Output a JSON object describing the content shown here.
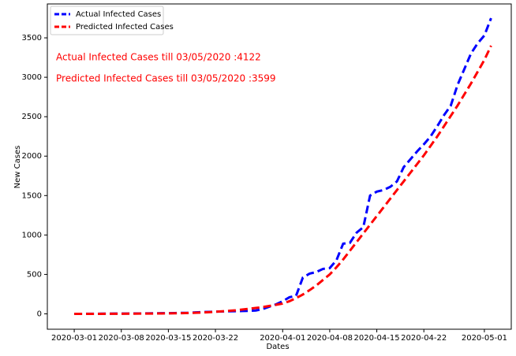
{
  "chart_data": {
    "type": "line",
    "xlabel": "Dates",
    "ylabel": "New Cases",
    "x": [
      "2020-03-01",
      "2020-03-02",
      "2020-03-03",
      "2020-03-04",
      "2020-03-05",
      "2020-03-06",
      "2020-03-07",
      "2020-03-08",
      "2020-03-09",
      "2020-03-10",
      "2020-03-11",
      "2020-03-12",
      "2020-03-13",
      "2020-03-14",
      "2020-03-15",
      "2020-03-16",
      "2020-03-17",
      "2020-03-18",
      "2020-03-19",
      "2020-03-20",
      "2020-03-21",
      "2020-03-22",
      "2020-03-23",
      "2020-03-24",
      "2020-03-25",
      "2020-03-26",
      "2020-03-27",
      "2020-03-28",
      "2020-03-29",
      "2020-03-30",
      "2020-03-31",
      "2020-04-01",
      "2020-04-02",
      "2020-04-03",
      "2020-04-04",
      "2020-04-05",
      "2020-04-06",
      "2020-04-07",
      "2020-04-08",
      "2020-04-09",
      "2020-04-10",
      "2020-04-11",
      "2020-04-12",
      "2020-04-13",
      "2020-04-14",
      "2020-04-15",
      "2020-04-16",
      "2020-04-17",
      "2020-04-18",
      "2020-04-19",
      "2020-04-20",
      "2020-04-21",
      "2020-04-22",
      "2020-04-23",
      "2020-04-24",
      "2020-04-25",
      "2020-04-26",
      "2020-04-27",
      "2020-04-28",
      "2020-04-29",
      "2020-04-30",
      "2020-05-01",
      "2020-05-02"
    ],
    "series": [
      {
        "name": "Actual Infected Cases",
        "color": "#0000ff",
        "values": [
          0,
          0,
          1,
          1,
          2,
          2,
          3,
          3,
          4,
          5,
          5,
          6,
          7,
          8,
          9,
          10,
          12,
          14,
          18,
          22,
          25,
          28,
          30,
          32,
          34,
          36,
          38,
          42,
          60,
          90,
          120,
          160,
          210,
          230,
          460,
          510,
          530,
          570,
          580,
          680,
          890,
          900,
          1030,
          1100,
          1500,
          1550,
          1570,
          1610,
          1680,
          1860,
          1960,
          2060,
          2150,
          2250,
          2380,
          2520,
          2640,
          2900,
          3100,
          3300,
          3430,
          3530,
          3750
        ]
      },
      {
        "name": "Predicted Infected Cases",
        "color": "#ff0000",
        "values": [
          0,
          0,
          0,
          0,
          0,
          1,
          1,
          1,
          2,
          2,
          3,
          3,
          4,
          5,
          6,
          7,
          9,
          11,
          14,
          17,
          21,
          26,
          32,
          38,
          45,
          55,
          65,
          75,
          85,
          100,
          115,
          130,
          160,
          200,
          245,
          300,
          360,
          430,
          500,
          590,
          690,
          800,
          910,
          1020,
          1130,
          1240,
          1350,
          1460,
          1570,
          1680,
          1790,
          1900,
          2010,
          2130,
          2250,
          2380,
          2510,
          2640,
          2780,
          2920,
          3070,
          3220,
          3400
        ]
      }
    ],
    "annotations": [
      "Actual Infected Cases till 03/05/2020 :4122",
      "Predicted Infected Cases till 03/05/2020 :3599"
    ],
    "annotation_color": "#ff0000",
    "xlim": [
      "2020-02-26",
      "2020-05-05"
    ],
    "xticks": [
      "2020-03-01",
      "2020-03-08",
      "2020-03-15",
      "2020-03-22",
      "2020-04-01",
      "2020-04-08",
      "2020-04-15",
      "2020-04-22",
      "2020-05-01"
    ],
    "ylim": [
      -195,
      3930
    ],
    "yticks": [
      0,
      500,
      1000,
      1500,
      2000,
      2500,
      3000,
      3500
    ],
    "legend": "upper left",
    "grid": false
  }
}
